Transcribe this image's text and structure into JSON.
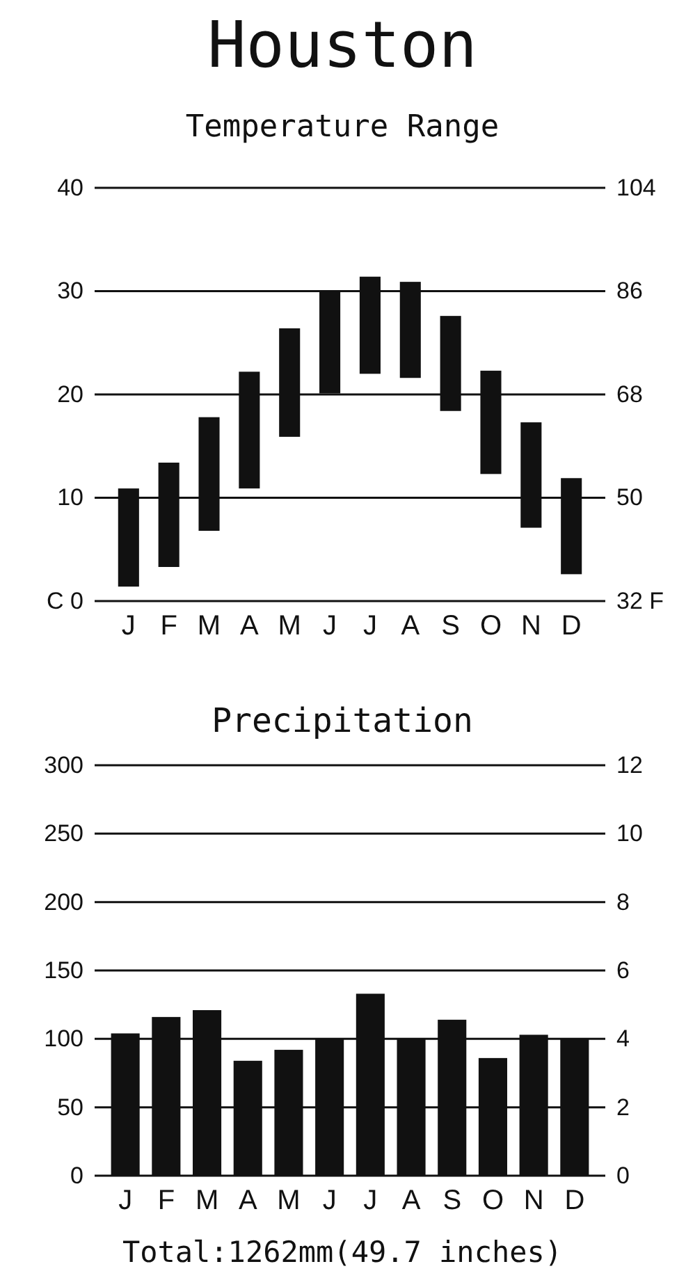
{
  "chart_data": [
    {
      "type": "bar",
      "title": "Houston",
      "subtitle": "Temperature Range",
      "categories": [
        "J",
        "F",
        "M",
        "A",
        "M",
        "J",
        "J",
        "A",
        "S",
        "O",
        "N",
        "D"
      ],
      "base": [
        1.4,
        3.3,
        6.8,
        10.9,
        15.9,
        20.1,
        22.0,
        21.6,
        18.4,
        12.3,
        7.1,
        2.6
      ],
      "values": [
        9.5,
        10.1,
        11.0,
        11.3,
        10.5,
        9.9,
        9.4,
        9.3,
        9.2,
        10.0,
        10.2,
        9.3
      ],
      "color": "#111111",
      "ylim": [
        0,
        40
      ],
      "yticks": [
        {
          "value": 0,
          "label": "C 0"
        },
        10,
        20,
        30,
        40
      ],
      "y2lim": [
        32,
        104
      ],
      "y2ticks": [
        {
          "value": 32,
          "label": "32 F"
        },
        50,
        68,
        86,
        104
      ],
      "grid": "y"
    },
    {
      "type": "bar",
      "title": "Precipitation",
      "categories": [
        "J",
        "F",
        "M",
        "A",
        "M",
        "J",
        "J",
        "A",
        "S",
        "O",
        "N",
        "D"
      ],
      "values": [
        104,
        116,
        121,
        84,
        92,
        100,
        133,
        100,
        114,
        86,
        103,
        100
      ],
      "color": "#111111",
      "ylim": [
        0,
        300
      ],
      "yticks": [
        0,
        50,
        100,
        150,
        200,
        250,
        300
      ],
      "y2lim": [
        0,
        12
      ],
      "y2ticks": [
        0,
        2,
        4,
        6,
        8,
        10,
        12
      ],
      "grid": "y",
      "annotations": [
        "Total:1262mm(49.7 inches)"
      ]
    }
  ]
}
